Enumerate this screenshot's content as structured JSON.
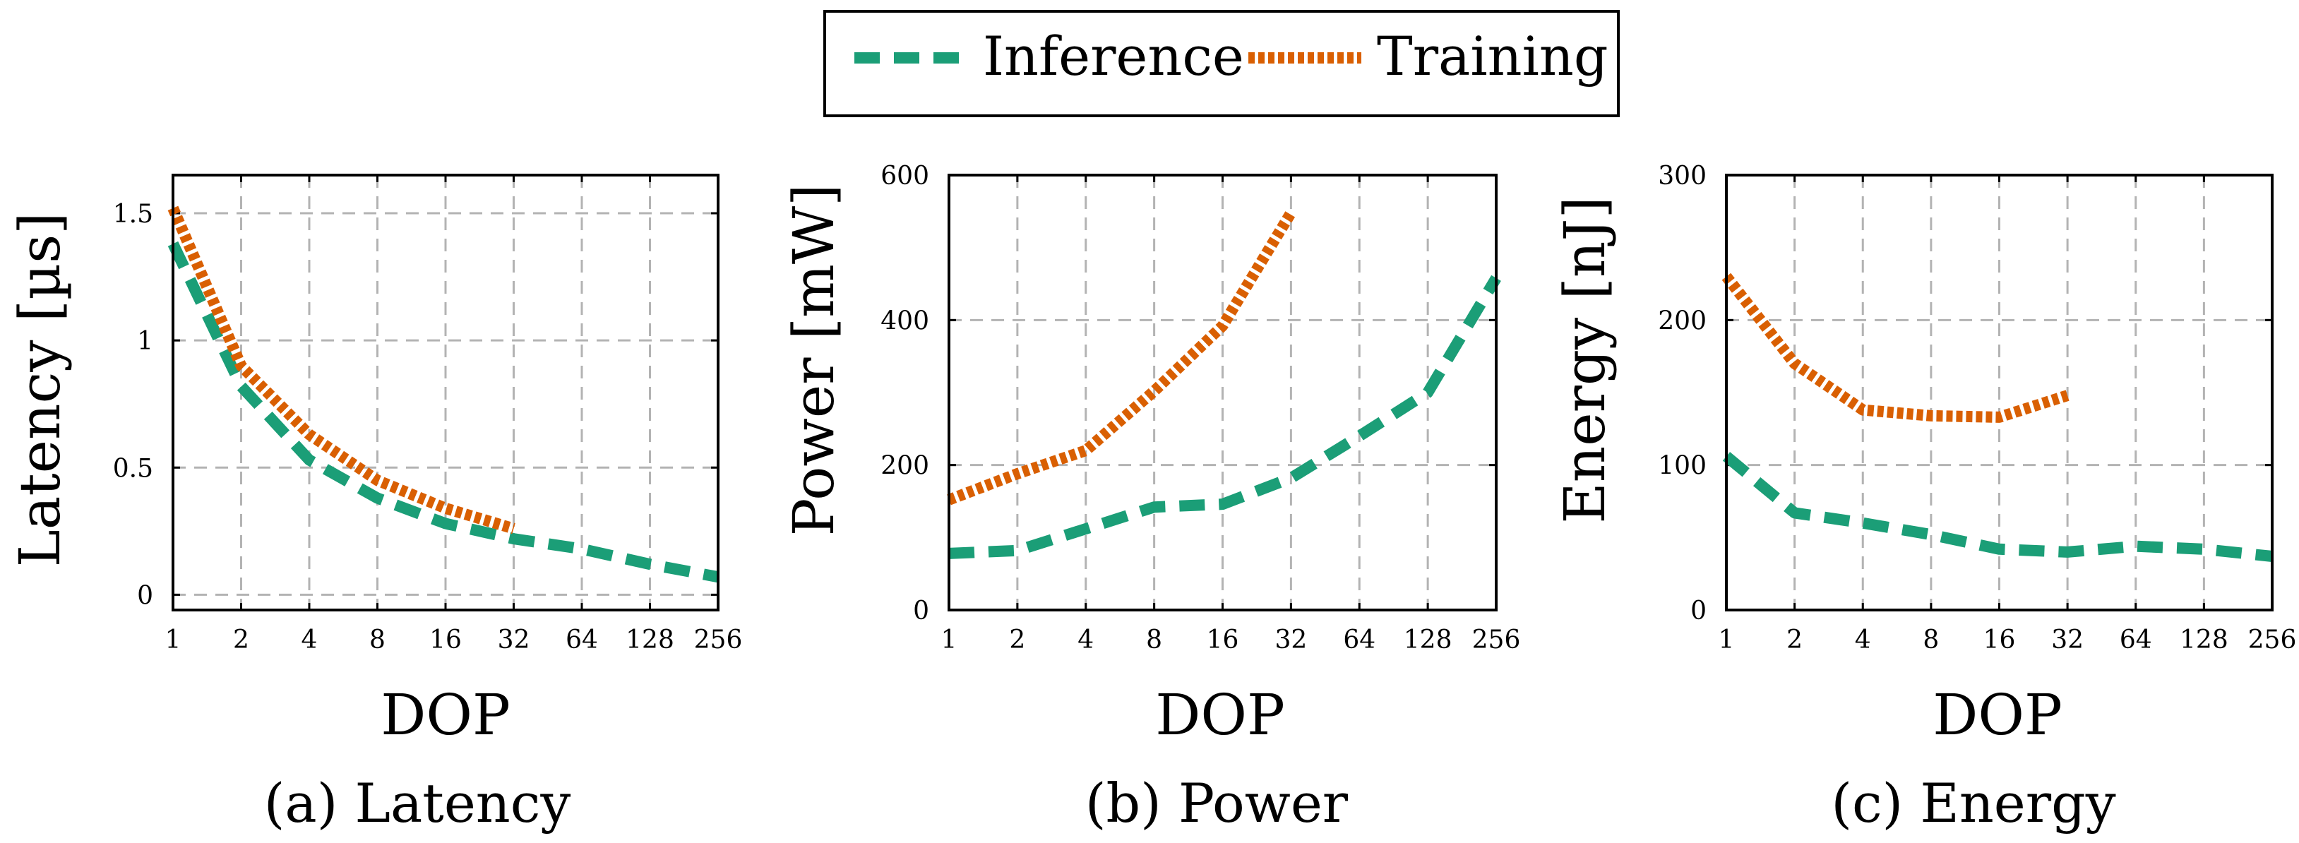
{
  "legend": {
    "entries": [
      {
        "name": "Inference",
        "color": "#1b9e77",
        "dash": "dashed"
      },
      {
        "name": "Training",
        "color": "#d95f02",
        "dash": "dotted"
      }
    ]
  },
  "chart_data": [
    {
      "type": "line",
      "caption": "(a) Latency",
      "xlabel": "DOP",
      "ylabel": "Latency [µs]",
      "x_ticks": [
        "1",
        "2",
        "4",
        "8",
        "16",
        "32",
        "64",
        "128",
        "256"
      ],
      "y_ticks": [
        {
          "value": 0,
          "label": "0"
        },
        {
          "value": 0.5,
          "label": "0.5"
        },
        {
          "value": 1,
          "label": "1"
        },
        {
          "value": 1.5,
          "label": "1.5"
        }
      ],
      "ylim": [
        -0.06,
        1.65
      ],
      "series": [
        {
          "name": "Inference",
          "x": [
            1,
            2,
            4,
            8,
            16,
            32,
            64,
            128,
            256
          ],
          "y": [
            1.38,
            0.82,
            0.53,
            0.38,
            0.28,
            0.22,
            0.18,
            0.12,
            0.07
          ]
        },
        {
          "name": "Training",
          "x": [
            1,
            2,
            4,
            8,
            16,
            32
          ],
          "y": [
            1.52,
            0.9,
            0.63,
            0.45,
            0.34,
            0.26
          ]
        }
      ]
    },
    {
      "type": "line",
      "caption": "(b) Power",
      "xlabel": "DOP",
      "ylabel": "Power [mW]",
      "x_ticks": [
        "1",
        "2",
        "4",
        "8",
        "16",
        "32",
        "64",
        "128",
        "256"
      ],
      "y_ticks": [
        {
          "value": 0,
          "label": "0"
        },
        {
          "value": 200,
          "label": "200"
        },
        {
          "value": 400,
          "label": "400"
        },
        {
          "value": 600,
          "label": "600"
        }
      ],
      "ylim": [
        0,
        600
      ],
      "series": [
        {
          "name": "Inference",
          "x": [
            1,
            2,
            4,
            8,
            16,
            32,
            64,
            128,
            256
          ],
          "y": [
            78,
            82,
            112,
            142,
            146,
            182,
            240,
            300,
            458
          ]
        },
        {
          "name": "Training",
          "x": [
            1,
            2,
            4,
            8,
            16,
            32
          ],
          "y": [
            152,
            188,
            220,
            302,
            392,
            548
          ]
        }
      ]
    },
    {
      "type": "line",
      "caption": "(c) Energy",
      "xlabel": "DOP",
      "ylabel": "Energy [nJ]",
      "x_ticks": [
        "1",
        "2",
        "4",
        "8",
        "16",
        "32",
        "64",
        "128",
        "256"
      ],
      "y_ticks": [
        {
          "value": 0,
          "label": "0"
        },
        {
          "value": 100,
          "label": "100"
        },
        {
          "value": 200,
          "label": "200"
        },
        {
          "value": 300,
          "label": "300"
        }
      ],
      "ylim": [
        0,
        300
      ],
      "series": [
        {
          "name": "Inference",
          "x": [
            1,
            2,
            4,
            8,
            16,
            32,
            64,
            128,
            256
          ],
          "y": [
            106,
            67,
            60,
            52,
            42,
            40,
            44,
            42,
            37
          ]
        },
        {
          "name": "Training",
          "x": [
            1,
            2,
            4,
            8,
            16,
            32
          ],
          "y": [
            230,
            170,
            138,
            134,
            133,
            148
          ]
        }
      ]
    }
  ]
}
